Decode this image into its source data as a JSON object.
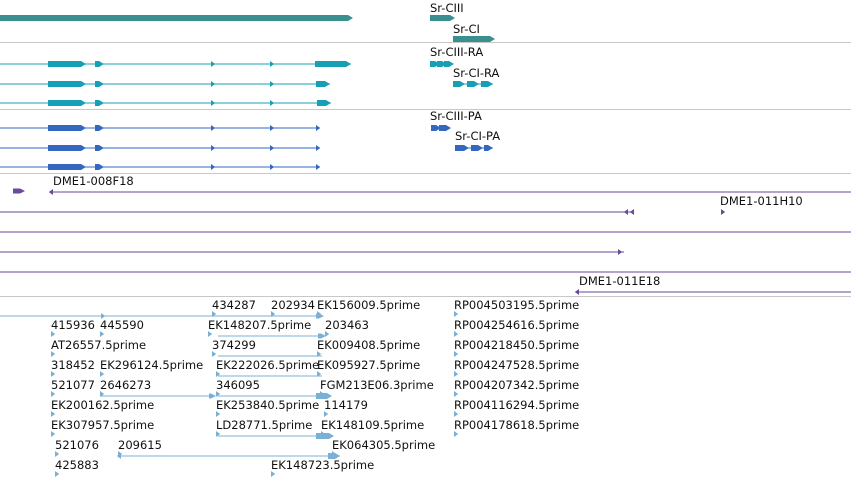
{
  "colors": {
    "gene": "#3a8f8f",
    "transcript": "#17a0b5",
    "protein": "#3468c0",
    "clone": "#6a4a9a",
    "est": "#7ab0d6",
    "separator": "#c8c8c8",
    "label": "#111111"
  },
  "tracks": {
    "genes": {
      "labels": [
        "Sr-CIII",
        "Sr-CI"
      ]
    },
    "transcripts": {
      "labels": [
        "Sr-CIII-RA",
        "Sr-CI-RA"
      ]
    },
    "proteins": {
      "labels": [
        "Sr-CIII-PA",
        "Sr-CI-PA"
      ]
    },
    "clones": {
      "labels": [
        "DME1-008F18",
        "DME1-011H10",
        "DME1-011E18"
      ]
    },
    "ests": {
      "labels": [
        "434287",
        "202934",
        "EK156009.5prime",
        "RP004503195.5prime",
        "415936",
        "445590",
        "EK148207.5prime",
        "203463",
        "RP004254616.5prime",
        "AT26557.5prime",
        "374299",
        "EK009408.5prime",
        "RP004218450.5prime",
        "318452",
        "EK296124.5prime",
        "EK222026.5prime",
        "EK095927.5prime",
        "RP004247528.5prime",
        "521077",
        "2646273",
        "346095",
        "FGM213E06.3prime",
        "RP004207342.5prime",
        "EK200162.5prime",
        "EK253840.5prime",
        "114179",
        "RP004116294.5prime",
        "EK307957.5prime",
        "LD28771.5prime",
        "EK148109.5prime",
        "RP004178618.5prime",
        "521076",
        "209615",
        "EK064305.5prime",
        "425883",
        "EK148723.5prime"
      ]
    }
  }
}
